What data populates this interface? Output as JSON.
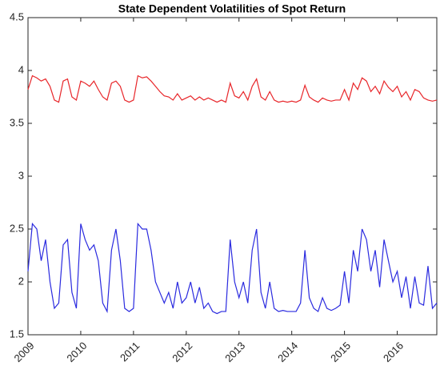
{
  "chart_data": {
    "type": "line",
    "title": "State Dependent Volatilities of Spot Return",
    "x": [
      2009,
      2009.083,
      2009.167,
      2009.25,
      2009.333,
      2009.417,
      2009.5,
      2009.583,
      2009.667,
      2009.75,
      2009.833,
      2009.917,
      2010,
      2010.083,
      2010.167,
      2010.25,
      2010.333,
      2010.417,
      2010.5,
      2010.583,
      2010.667,
      2010.75,
      2010.833,
      2010.917,
      2011,
      2011.083,
      2011.167,
      2011.25,
      2011.333,
      2011.417,
      2011.5,
      2011.583,
      2011.667,
      2011.75,
      2011.833,
      2011.917,
      2012,
      2012.083,
      2012.167,
      2012.25,
      2012.333,
      2012.417,
      2012.5,
      2012.583,
      2012.667,
      2012.75,
      2012.833,
      2012.917,
      2013,
      2013.083,
      2013.167,
      2013.25,
      2013.333,
      2013.417,
      2013.5,
      2013.583,
      2013.667,
      2013.75,
      2013.833,
      2013.917,
      2014,
      2014.083,
      2014.167,
      2014.25,
      2014.333,
      2014.417,
      2014.5,
      2014.583,
      2014.667,
      2014.75,
      2014.833,
      2014.917,
      2015,
      2015.083,
      2015.167,
      2015.25,
      2015.333,
      2015.417,
      2015.5,
      2015.583,
      2015.667,
      2015.75,
      2015.833,
      2015.917,
      2016,
      2016.083,
      2016.167,
      2016.25,
      2016.333,
      2016.417,
      2016.5,
      2016.583,
      2016.667,
      2016.75
    ],
    "series": [
      {
        "color": "#e8262a",
        "values": [
          3.82,
          3.95,
          3.93,
          3.9,
          3.92,
          3.85,
          3.72,
          3.7,
          3.9,
          3.92,
          3.75,
          3.72,
          3.9,
          3.88,
          3.85,
          3.9,
          3.82,
          3.75,
          3.72,
          3.88,
          3.9,
          3.85,
          3.72,
          3.7,
          3.72,
          3.95,
          3.93,
          3.94,
          3.9,
          3.85,
          3.8,
          3.76,
          3.75,
          3.72,
          3.78,
          3.72,
          3.74,
          3.76,
          3.72,
          3.75,
          3.72,
          3.74,
          3.72,
          3.7,
          3.72,
          3.7,
          3.88,
          3.76,
          3.74,
          3.8,
          3.72,
          3.85,
          3.92,
          3.75,
          3.72,
          3.8,
          3.72,
          3.7,
          3.71,
          3.7,
          3.71,
          3.7,
          3.72,
          3.86,
          3.75,
          3.72,
          3.7,
          3.74,
          3.72,
          3.71,
          3.72,
          3.72,
          3.82,
          3.72,
          3.88,
          3.82,
          3.93,
          3.9,
          3.8,
          3.85,
          3.78,
          3.9,
          3.84,
          3.8,
          3.85,
          3.75,
          3.8,
          3.72,
          3.82,
          3.8,
          3.74,
          3.72,
          3.71,
          3.72
        ]
      },
      {
        "color": "#2a2adf",
        "values": [
          2.1,
          2.55,
          2.5,
          2.2,
          2.4,
          2.0,
          1.75,
          1.8,
          2.35,
          2.4,
          1.9,
          1.75,
          2.55,
          2.4,
          2.3,
          2.35,
          2.2,
          1.8,
          1.72,
          2.3,
          2.5,
          2.2,
          1.75,
          1.72,
          1.75,
          2.55,
          2.5,
          2.5,
          2.3,
          2.0,
          1.9,
          1.8,
          1.9,
          1.75,
          2.0,
          1.8,
          1.85,
          2.0,
          1.8,
          1.95,
          1.75,
          1.8,
          1.72,
          1.7,
          1.72,
          1.72,
          2.4,
          2.0,
          1.85,
          2.0,
          1.8,
          2.3,
          2.5,
          1.9,
          1.75,
          2.0,
          1.75,
          1.72,
          1.73,
          1.72,
          1.72,
          1.72,
          1.8,
          2.3,
          1.85,
          1.75,
          1.72,
          1.85,
          1.75,
          1.73,
          1.75,
          1.78,
          2.1,
          1.8,
          2.3,
          2.1,
          2.5,
          2.4,
          2.1,
          2.3,
          1.95,
          2.4,
          2.2,
          2.0,
          2.1,
          1.85,
          2.05,
          1.75,
          2.05,
          1.8,
          1.78,
          2.15,
          1.75,
          1.8
        ]
      }
    ],
    "xlim": [
      2009,
      2016.75
    ],
    "xticks": [
      2009,
      2010,
      2011,
      2012,
      2013,
      2014,
      2015,
      2016
    ],
    "ylim": [
      1.5,
      4.5
    ],
    "yticks": [
      1.5,
      2,
      2.5,
      3,
      3.5,
      4,
      4.5
    ],
    "grid": false
  }
}
